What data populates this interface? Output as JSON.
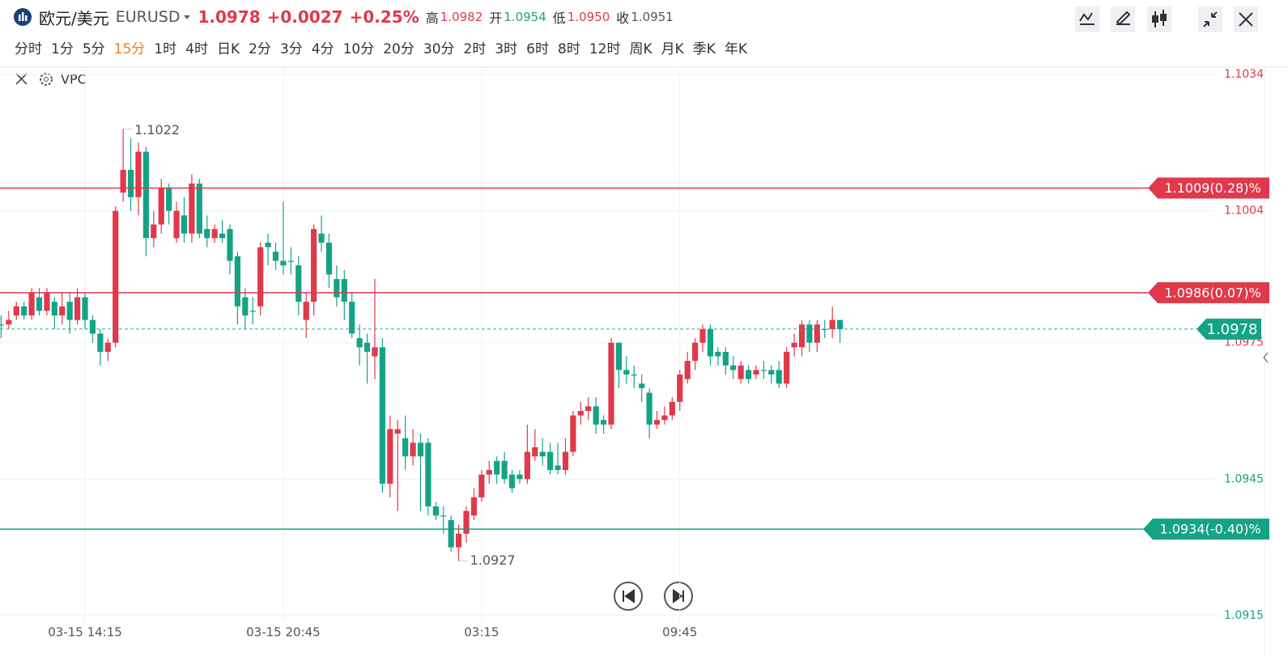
{
  "header": {
    "name": "欧元/美元",
    "symbol": "EURUSD",
    "price": "1.0978",
    "change": "+0.0027",
    "change_pct": "+0.25%",
    "high_label": "高",
    "high": "1.0982",
    "open_label": "开",
    "open": "1.0954",
    "low_label": "低",
    "low": "1.0950",
    "close_label": "收",
    "prev_close": 1.0951
  },
  "periods": [
    "分时",
    "1分",
    "5分",
    "15分",
    "1时",
    "4时",
    "日K",
    "2分",
    "3分",
    "4分",
    "10分",
    "20分",
    "30分",
    "2时",
    "3时",
    "6时",
    "8时",
    "12时",
    "周K",
    "月K",
    "季K",
    "年K"
  ],
  "active_period": "15分",
  "indicator": "VPC",
  "chart_data": {
    "type": "candlestick",
    "up_color": "#e0394b",
    "down_color": "#15a386",
    "x": [
      null,
      null,
      null,
      null,
      null,
      null,
      null,
      null,
      null,
      null,
      null,
      "03-15 14:15",
      null,
      null,
      null,
      null,
      null,
      null,
      null,
      null,
      null,
      null,
      null,
      null,
      null,
      null,
      null,
      null,
      null,
      null,
      null,
      null,
      null,
      null,
      null,
      null,
      null,
      "03-15 20:45",
      null,
      null,
      null,
      null,
      null,
      null,
      null,
      null,
      null,
      null,
      null,
      null,
      null,
      null,
      null,
      null,
      null,
      null,
      null,
      null,
      null,
      null,
      null,
      null,
      null,
      "03:15",
      null,
      null,
      null,
      null,
      null,
      null,
      null,
      null,
      null,
      null,
      null,
      null,
      null,
      null,
      null,
      null,
      null,
      null,
      null,
      null,
      null,
      null,
      null,
      null,
      null,
      "09:45",
      null,
      null,
      null,
      null,
      null,
      null,
      null,
      null,
      null,
      null,
      null,
      null,
      null,
      null,
      null,
      null,
      null,
      null,
      null,
      null,
      null
    ],
    "ohlc": [
      [
        1.0979,
        1.0981,
        1.0976,
        1.0979
      ],
      [
        1.0979,
        1.0982,
        1.0978,
        1.098
      ],
      [
        1.0981,
        1.0984,
        1.098,
        1.0983
      ],
      [
        1.0983,
        1.0984,
        1.098,
        1.0981
      ],
      [
        1.0981,
        1.0987,
        1.098,
        1.0986
      ],
      [
        1.0985,
        1.0987,
        1.0981,
        1.0982
      ],
      [
        1.0982,
        1.0987,
        1.0981,
        1.0986
      ],
      [
        1.0984,
        1.0985,
        1.0978,
        1.0981
      ],
      [
        1.0981,
        1.0986,
        1.0979,
        1.0983
      ],
      [
        1.0984,
        1.0986,
        1.0977,
        1.098
      ],
      [
        1.098,
        1.0987,
        1.0979,
        1.0985
      ],
      [
        1.0985,
        1.0986,
        1.0978,
        1.098
      ],
      [
        1.098,
        1.0981,
        1.0975,
        1.0977
      ],
      [
        1.0977,
        1.0978,
        1.097,
        1.0973
      ],
      [
        1.0973,
        1.0976,
        1.0971,
        1.0975
      ],
      [
        1.0975,
        1.1005,
        1.0974,
        1.1004
      ],
      [
        1.1008,
        1.1022,
        1.1006,
        1.1013
      ],
      [
        1.1013,
        1.102,
        1.1004,
        1.1007
      ],
      [
        1.1007,
        1.1019,
        1.1003,
        1.1017
      ],
      [
        1.1017,
        1.1018,
        1.0994,
        1.0998
      ],
      [
        1.0998,
        1.1004,
        1.0996,
        1.1001
      ],
      [
        1.1001,
        1.1011,
        1.0999,
        1.1009
      ],
      [
        1.1009,
        1.101,
        1.1001,
        1.1004
      ],
      [
        1.0998,
        1.1006,
        1.0997,
        1.1004
      ],
      [
        1.1003,
        1.1007,
        1.0997,
        1.0999
      ],
      [
        1.0999,
        1.1012,
        1.0997,
        1.101
      ],
      [
        1.101,
        1.1011,
        1.0998,
        1.0999
      ],
      [
        1.1,
        1.1003,
        1.0996,
        1.0998
      ],
      [
        1.0998,
        1.1001,
        1.0997,
        1.1
      ],
      [
        1.0999,
        1.1002,
        1.0997,
        1.0998
      ],
      [
        1.1,
        1.1001,
        1.099,
        1.0993
      ],
      [
        1.0994,
        1.0995,
        1.0979,
        1.0983
      ],
      [
        1.0985,
        1.0987,
        1.0978,
        1.0981
      ],
      [
        1.0982,
        1.0985,
        1.0979,
        1.0982
      ],
      [
        1.0983,
        1.0997,
        1.0981,
        1.0996
      ],
      [
        1.0997,
        1.0999,
        1.0992,
        1.0996
      ],
      [
        1.0995,
        1.0997,
        1.0991,
        1.0993
      ],
      [
        1.0993,
        1.1006,
        1.099,
        1.0992
      ],
      [
        1.0993,
        1.0996,
        1.099,
        1.0993
      ],
      [
        1.0992,
        1.0994,
        1.0981,
        1.0984
      ],
      [
        1.098,
        1.0986,
        1.0976,
        1.0984
      ],
      [
        1.0984,
        1.1001,
        1.0981,
        1.1
      ],
      [
        1.0999,
        1.1003,
        1.0995,
        1.0997
      ],
      [
        1.0997,
        1.0999,
        1.0987,
        1.099
      ],
      [
        1.0989,
        1.0992,
        1.0983,
        1.0985
      ],
      [
        1.0989,
        1.0991,
        1.098,
        1.0984
      ],
      [
        1.0984,
        1.0986,
        1.0976,
        1.0977
      ],
      [
        1.0976,
        1.0979,
        1.097,
        1.0974
      ],
      [
        1.0975,
        1.0977,
        1.0966,
        1.0973
      ],
      [
        1.0972,
        1.0989,
        1.0967,
        1.0974
      ],
      [
        1.0974,
        1.0976,
        1.0942,
        1.0944
      ],
      [
        1.0944,
        1.0959,
        1.0941,
        1.0956
      ],
      [
        1.0955,
        1.0958,
        1.0938,
        1.0956
      ],
      [
        1.0954,
        1.0959,
        1.0947,
        1.095
      ],
      [
        1.095,
        1.0956,
        1.0948,
        1.0953
      ],
      [
        1.0953,
        1.0955,
        1.0938,
        1.095
      ],
      [
        1.0953,
        1.0954,
        1.0937,
        1.0939
      ],
      [
        1.0939,
        1.094,
        1.0936,
        1.0937
      ],
      [
        1.0937,
        1.0939,
        1.0933,
        1.0937
      ],
      [
        1.0936,
        1.0937,
        1.0929,
        1.093
      ],
      [
        1.093,
        1.0935,
        1.0927,
        1.0933
      ],
      [
        1.0933,
        1.0939,
        1.0931,
        1.0938
      ],
      [
        1.0937,
        1.0943,
        1.0936,
        1.0941
      ],
      [
        1.0941,
        1.0947,
        1.094,
        1.0946
      ],
      [
        1.0946,
        1.0949,
        1.0944,
        1.0947
      ],
      [
        1.0949,
        1.095,
        1.0944,
        1.0946
      ],
      [
        1.0949,
        1.0951,
        1.0944,
        1.0945
      ],
      [
        1.0946,
        1.0947,
        1.0942,
        1.0943
      ],
      [
        1.0946,
        1.0947,
        1.0944,
        1.0945
      ],
      [
        1.0945,
        1.0957,
        1.0944,
        1.0951
      ],
      [
        1.095,
        1.0956,
        1.0949,
        1.0952
      ],
      [
        1.0951,
        1.0954,
        1.0948,
        1.095
      ],
      [
        1.0951,
        1.0953,
        1.0946,
        1.0947
      ],
      [
        1.0948,
        1.0953,
        1.0946,
        1.0947
      ],
      [
        1.0947,
        1.0954,
        1.0946,
        1.0951
      ],
      [
        1.0951,
        1.096,
        1.095,
        1.0959
      ],
      [
        1.0959,
        1.0962,
        1.0957,
        1.096
      ],
      [
        1.096,
        1.0963,
        1.0958,
        1.0961
      ],
      [
        1.0961,
        1.0963,
        1.0955,
        1.0957
      ],
      [
        1.0958,
        1.0959,
        1.0955,
        1.0957
      ],
      [
        1.0957,
        1.0976,
        1.0956,
        1.0975
      ],
      [
        1.0975,
        1.0975,
        1.0965,
        1.0969
      ],
      [
        1.0969,
        1.0972,
        1.0966,
        1.0968
      ],
      [
        1.0968,
        1.097,
        1.0965,
        1.0968
      ],
      [
        1.0966,
        1.0968,
        1.0962,
        1.0965
      ],
      [
        1.0964,
        1.0965,
        1.0954,
        1.0957
      ],
      [
        1.0957,
        1.096,
        1.0956,
        1.0958
      ],
      [
        1.0958,
        1.0961,
        1.0957,
        1.0959
      ],
      [
        1.0959,
        1.0963,
        1.0958,
        1.0962
      ],
      [
        1.0962,
        1.0969,
        1.096,
        1.0968
      ],
      [
        1.0967,
        1.0973,
        1.0966,
        1.0971
      ],
      [
        1.0971,
        1.0976,
        1.0969,
        1.0975
      ],
      [
        1.0975,
        1.0979,
        1.0973,
        1.0978
      ],
      [
        1.0978,
        1.0979,
        1.097,
        1.0972
      ],
      [
        1.0973,
        1.0974,
        1.097,
        1.0972
      ],
      [
        1.0973,
        1.0974,
        1.0968,
        1.097
      ],
      [
        1.097,
        1.0972,
        1.0967,
        1.0969
      ],
      [
        1.0967,
        1.0971,
        1.0966,
        1.097
      ],
      [
        1.0969,
        1.097,
        1.0966,
        1.0967
      ],
      [
        1.0968,
        1.097,
        1.0967,
        1.0969
      ],
      [
        1.0969,
        1.0971,
        1.0967,
        1.0969
      ],
      [
        1.0969,
        1.097,
        1.0966,
        1.0968
      ],
      [
        1.0969,
        1.0971,
        1.0965,
        1.0966
      ],
      [
        1.0966,
        1.0974,
        1.0965,
        1.0973
      ],
      [
        1.0974,
        1.0977,
        1.0972,
        1.0975
      ],
      [
        1.0974,
        1.098,
        1.0972,
        1.0979
      ],
      [
        1.0979,
        1.098,
        1.0973,
        1.0975
      ],
      [
        1.0975,
        1.098,
        1.0973,
        1.0979
      ],
      [
        1.0978,
        1.098,
        1.0976,
        1.0978
      ],
      [
        1.0978,
        1.0983,
        1.0976,
        1.098
      ],
      [
        1.098,
        1.098,
        1.0975,
        1.0978
      ]
    ],
    "ylim": [
      1.0915,
      1.1034
    ],
    "yticks": [
      1.1034,
      1.1004,
      1.0975,
      1.0945,
      1.0915
    ],
    "grid": true,
    "price_lines": [
      {
        "value": 1.1009,
        "label": "1.1009(0.28)%",
        "color": "#e0394b"
      },
      {
        "value": 1.0986,
        "label": "1.0986(0.07)%",
        "color": "#e0394b"
      },
      {
        "value": 1.0934,
        "label": "1.0934(-0.40)%",
        "color": "#15a386"
      }
    ]
  }
}
